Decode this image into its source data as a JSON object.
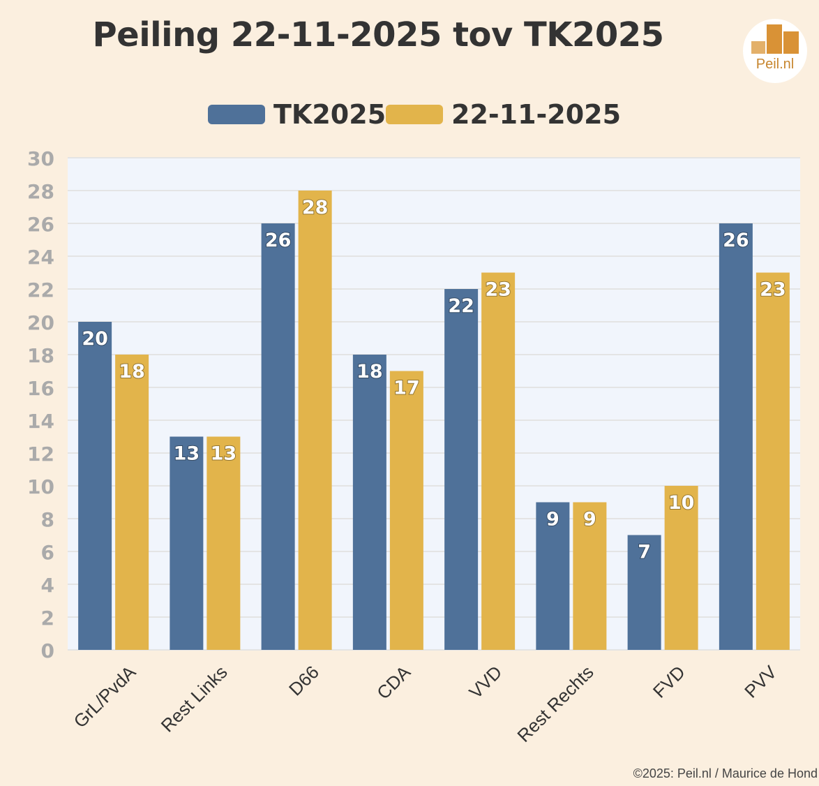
{
  "title": "Peiling 22-11-2025 tov TK2025",
  "logo_text": "Peil.nl",
  "credit": "©2025: Peil.nl / Maurice de Hond",
  "colors": {
    "tk2025": "#4f7199",
    "poll": "#e2b44b",
    "background": "#fbefdf",
    "plot": "#f1f5fc",
    "axis_text": "#aaaaaa"
  },
  "chart_data": {
    "type": "bar",
    "title": "Peiling 22-11-2025 tov TK2025",
    "xlabel": "",
    "ylabel": "",
    "ylim": [
      0,
      30
    ],
    "yticks": [
      0,
      2,
      4,
      6,
      8,
      10,
      12,
      14,
      16,
      18,
      20,
      22,
      24,
      26,
      28,
      30
    ],
    "grid": true,
    "legend_position": "top-center",
    "categories": [
      "GrL/PvdA",
      "Rest Links",
      "D66",
      "CDA",
      "VVD",
      "Rest Rechts",
      "FVD",
      "PVV"
    ],
    "series": [
      {
        "name": "TK2025",
        "values": [
          20,
          13,
          26,
          18,
          22,
          9,
          7,
          26
        ]
      },
      {
        "name": "22-11-2025",
        "values": [
          18,
          13,
          28,
          17,
          23,
          9,
          10,
          23
        ]
      }
    ]
  }
}
